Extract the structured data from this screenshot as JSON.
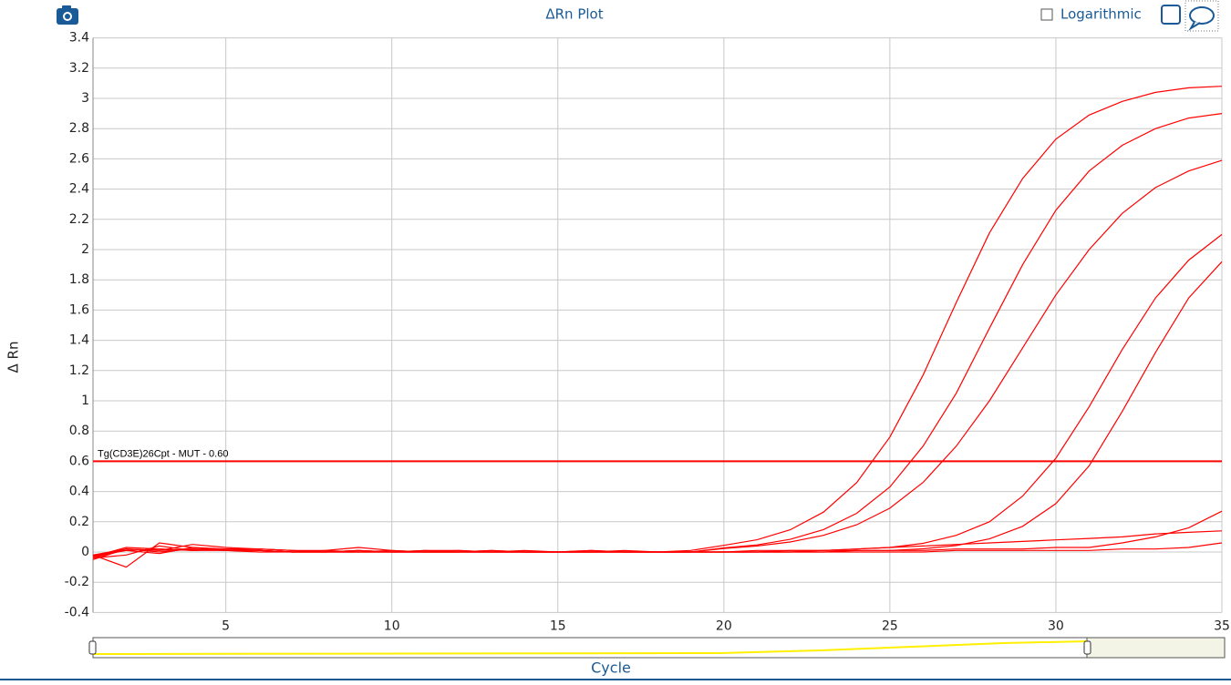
{
  "chart_data": {
    "type": "line",
    "title": "ΔRn Plot",
    "x_label": "Cycle",
    "y_label": "Δ Rn",
    "logarithmic_label": "Logarithmic",
    "log_scale": false,
    "grid": true,
    "xlim": [
      1,
      35
    ],
    "ylim": [
      -0.4,
      3.4
    ],
    "xticks": [
      5,
      10,
      15,
      20,
      25,
      30,
      35
    ],
    "yticks": [
      -0.4,
      -0.2,
      0,
      0.2,
      0.4,
      0.6,
      0.8,
      1,
      1.2,
      1.4,
      1.6,
      1.8,
      2,
      2.2,
      2.4,
      2.6,
      2.8,
      3,
      3.2,
      3.4
    ],
    "threshold": {
      "value": 0.6,
      "label": "Tg(CD3E)26Cpt - MUT - 0.60",
      "color": "#ff0000"
    },
    "x": [
      1,
      2,
      3,
      4,
      5,
      6,
      7,
      8,
      9,
      10,
      11,
      12,
      13,
      14,
      15,
      16,
      17,
      18,
      19,
      20,
      21,
      22,
      23,
      24,
      25,
      26,
      27,
      28,
      29,
      30,
      31,
      32,
      33,
      34,
      35
    ],
    "series": [
      {
        "color": "#ff0000",
        "values": [
          -0.04,
          0.02,
          0.01,
          0.02,
          0.01,
          0.01,
          0,
          0,
          0.01,
          0,
          0,
          0.01,
          0,
          0,
          0,
          0,
          0.01,
          0,
          0.01,
          0.044,
          0.081,
          0.147,
          0.264,
          0.459,
          0.76,
          1.17,
          1.65,
          2.11,
          2.47,
          2.73,
          2.89,
          2.98,
          3.04,
          3.07,
          3.08
        ]
      },
      {
        "color": "#ff0000",
        "values": [
          -0.02,
          0.01,
          -0.01,
          0.03,
          0.02,
          0.01,
          0,
          0.01,
          0,
          0,
          0.01,
          0,
          0,
          0.01,
          0,
          0,
          0,
          0,
          0,
          0.027,
          0.047,
          0.084,
          0.148,
          0.256,
          0.43,
          0.7,
          1.05,
          1.48,
          1.9,
          2.26,
          2.52,
          2.69,
          2.8,
          2.87,
          2.9
        ]
      },
      {
        "color": "#ff0000",
        "values": [
          -0.03,
          0.03,
          0.02,
          0.01,
          0.02,
          0.02,
          0.01,
          0,
          0,
          0.01,
          0,
          0,
          0.01,
          0,
          0,
          0.01,
          0,
          0,
          0,
          0.023,
          0.04,
          0.066,
          0.11,
          0.18,
          0.29,
          0.46,
          0.7,
          1.0,
          1.35,
          1.7,
          2.0,
          2.24,
          2.41,
          2.52,
          2.59
        ]
      },
      {
        "color": "#ff0000",
        "values": [
          -0.02,
          -0.1,
          0.06,
          0.03,
          0.01,
          0.01,
          0,
          0,
          0.01,
          0,
          0,
          0,
          0.01,
          0,
          0,
          0,
          0,
          0,
          0,
          0,
          0.01,
          0.01,
          0.01,
          0.02,
          0.03,
          0.057,
          0.11,
          0.2,
          0.37,
          0.62,
          0.96,
          1.34,
          1.68,
          1.93,
          2.1
        ]
      },
      {
        "color": "#ff0000",
        "values": [
          -0.05,
          0.02,
          0.01,
          0.05,
          0.03,
          0.02,
          0.01,
          0.01,
          0.03,
          0.01,
          0,
          0,
          0,
          0,
          0,
          0,
          0,
          0,
          0,
          0,
          0,
          0.01,
          0.01,
          0.01,
          0.01,
          0.021,
          0.043,
          0.087,
          0.17,
          0.32,
          0.57,
          0.93,
          1.32,
          1.68,
          1.92
        ]
      },
      {
        "color": "#ff0000",
        "values": [
          -0.03,
          0.01,
          0.02,
          0.01,
          0.01,
          0,
          0,
          0,
          0,
          0,
          0,
          0,
          0,
          0,
          0,
          0,
          0,
          0,
          0,
          0,
          0,
          0,
          0,
          0.01,
          0.01,
          0.01,
          0.02,
          0.02,
          0.02,
          0.03,
          0.03,
          0.06,
          0.1,
          0.16,
          0.27
        ]
      },
      {
        "color": "#ff0000",
        "values": [
          -0.04,
          -0.02,
          0.04,
          0.01,
          0.02,
          0.02,
          0.01,
          0,
          0.01,
          0,
          0.01,
          0.01,
          0,
          0,
          0,
          0.01,
          0,
          0,
          0,
          0,
          0,
          0,
          0.01,
          0.02,
          0.03,
          0.04,
          0.05,
          0.06,
          0.07,
          0.08,
          0.09,
          0.1,
          0.12,
          0.13,
          0.14
        ]
      },
      {
        "color": "#ff0000",
        "values": [
          -0.02,
          0.02,
          0,
          0.02,
          0.01,
          0.01,
          0,
          0,
          0,
          0,
          0,
          0,
          0,
          0,
          0,
          0,
          0,
          0,
          0,
          0,
          0,
          0,
          0,
          0,
          0,
          0,
          0.01,
          0.01,
          0.01,
          0.01,
          0.01,
          0.02,
          0.02,
          0.03,
          0.06
        ]
      }
    ]
  }
}
